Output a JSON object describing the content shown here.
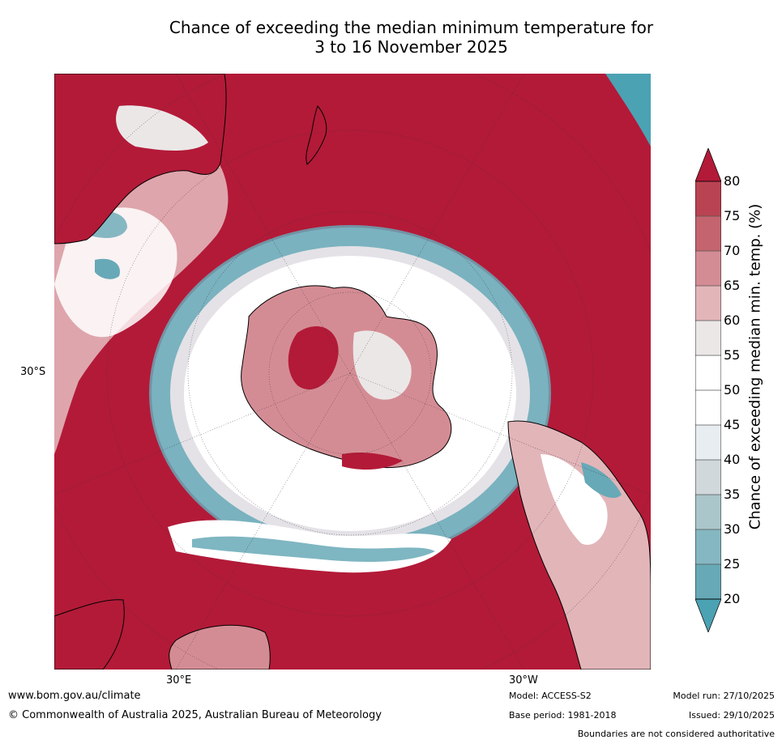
{
  "title": {
    "line1": "Chance of exceeding the median minimum temperature for",
    "line2": "3 to 16 November 2025"
  },
  "map": {
    "lat_label": "30°S",
    "lon_labels": [
      "30°E",
      "30°W"
    ]
  },
  "colorbar": {
    "label": "Chance of exceeding median min. temp. (%)",
    "ticks": [
      "80",
      "75",
      "70",
      "65",
      "60",
      "55",
      "50",
      "45",
      "40",
      "35",
      "30",
      "25",
      "20"
    ],
    "colors": {
      "above_80": "#b31a38",
      "75_80": "#b94352",
      "70_75": "#c4646e",
      "65_70": "#d48c94",
      "60_65": "#e2b5b9",
      "55_60": "#ebe7e7",
      "50_55": "#ffffff",
      "45_50": "#ffffff",
      "40_45": "#e7edf0",
      "35_40": "#d0d8db",
      "30_35": "#abc6cb",
      "25_30": "#85b7c2",
      "20_25": "#67a9b7",
      "below_20": "#4ba2b3"
    }
  },
  "footer": {
    "url": "www.bom.gov.au/climate",
    "copyright": "© Commonwealth of Australia 2025, Australian Bureau of Meteorology",
    "model": "Model: ACCESS-S2",
    "base_period": "Base period: 1981-2018",
    "model_run": "Model run: 27/10/2025",
    "issued": "Issued: 29/10/2025",
    "disclaimer": "Boundaries are not considered authoritative"
  }
}
